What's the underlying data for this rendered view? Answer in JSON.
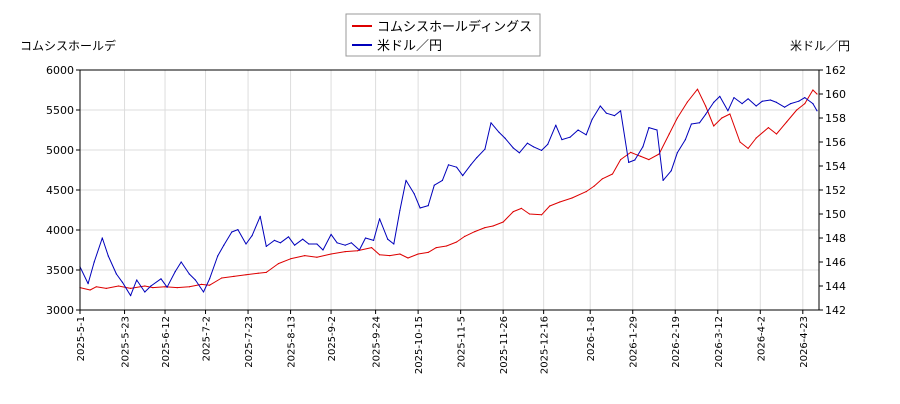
{
  "chart_data": {
    "type": "line",
    "left_axis_label": "コムシスホールデ",
    "right_axis_label": "米ドル／円",
    "legend": [
      "コムシスホールディングス",
      "米ドル／円"
    ],
    "left_ylim": [
      3000,
      6000
    ],
    "right_ylim": [
      142,
      162
    ],
    "left_yticks": [
      "3000",
      "3500",
      "4000",
      "4500",
      "5000",
      "5500",
      "6000"
    ],
    "right_yticks": [
      "142",
      "144",
      "146",
      "148",
      "150",
      "152",
      "154",
      "156",
      "158",
      "160",
      "162"
    ],
    "xlim": [
      "2025-05-01",
      "2026-05-01"
    ],
    "x_tick_labels": [
      "2025-5-1",
      "2025-5-23",
      "2025-6-12",
      "2025-7-2",
      "2025-7-23",
      "2025-8-13",
      "2025-9-2",
      "2025-9-24",
      "2025-10-15",
      "2025-11-5",
      "2025-11-26",
      "2025-12-16",
      "2026-1-8",
      "2026-1-29",
      "2026-2-19",
      "2026-3-12",
      "2026-4-2",
      "2026-4-23"
    ],
    "x_tick_dates": [
      "2025-05-01",
      "2025-05-23",
      "2025-06-12",
      "2025-07-02",
      "2025-07-23",
      "2025-08-13",
      "2025-09-02",
      "2025-09-24",
      "2025-10-15",
      "2025-11-05",
      "2025-11-26",
      "2025-12-16",
      "2026-01-08",
      "2026-01-29",
      "2026-02-19",
      "2026-03-12",
      "2026-04-02",
      "2026-04-23"
    ],
    "grid": true,
    "legend_position": "top-center",
    "series": [
      {
        "name": "コムシスホールディングス",
        "axis": "left",
        "color": "#dd0000",
        "points": [
          [
            "2025-05-01",
            3280
          ],
          [
            "2025-05-06",
            3250
          ],
          [
            "2025-05-09",
            3290
          ],
          [
            "2025-05-14",
            3270
          ],
          [
            "2025-05-20",
            3300
          ],
          [
            "2025-05-26",
            3270
          ],
          [
            "2025-06-02",
            3300
          ],
          [
            "2025-06-06",
            3280
          ],
          [
            "2025-06-12",
            3290
          ],
          [
            "2025-06-18",
            3280
          ],
          [
            "2025-06-24",
            3290
          ],
          [
            "2025-06-30",
            3320
          ],
          [
            "2025-07-04",
            3310
          ],
          [
            "2025-07-10",
            3400
          ],
          [
            "2025-07-16",
            3420
          ],
          [
            "2025-07-22",
            3440
          ],
          [
            "2025-07-28",
            3460
          ],
          [
            "2025-08-01",
            3470
          ],
          [
            "2025-08-07",
            3580
          ],
          [
            "2025-08-13",
            3640
          ],
          [
            "2025-08-20",
            3680
          ],
          [
            "2025-08-26",
            3660
          ],
          [
            "2025-09-02",
            3700
          ],
          [
            "2025-09-09",
            3730
          ],
          [
            "2025-09-15",
            3740
          ],
          [
            "2025-09-22",
            3780
          ],
          [
            "2025-09-26",
            3690
          ],
          [
            "2025-10-01",
            3680
          ],
          [
            "2025-10-06",
            3700
          ],
          [
            "2025-10-10",
            3650
          ],
          [
            "2025-10-15",
            3700
          ],
          [
            "2025-10-20",
            3720
          ],
          [
            "2025-10-24",
            3780
          ],
          [
            "2025-10-29",
            3800
          ],
          [
            "2025-11-03",
            3850
          ],
          [
            "2025-11-07",
            3920
          ],
          [
            "2025-11-12",
            3980
          ],
          [
            "2025-11-17",
            4030
          ],
          [
            "2025-11-21",
            4050
          ],
          [
            "2025-11-26",
            4100
          ],
          [
            "2025-12-01",
            4230
          ],
          [
            "2025-12-05",
            4270
          ],
          [
            "2025-12-09",
            4200
          ],
          [
            "2025-12-15",
            4190
          ],
          [
            "2025-12-19",
            4300
          ],
          [
            "2025-12-24",
            4350
          ],
          [
            "2025-12-30",
            4400
          ],
          [
            "2026-01-06",
            4480
          ],
          [
            "2026-01-10",
            4550
          ],
          [
            "2026-01-14",
            4640
          ],
          [
            "2026-01-19",
            4700
          ],
          [
            "2026-01-23",
            4880
          ],
          [
            "2026-01-28",
            4970
          ],
          [
            "2026-02-02",
            4920
          ],
          [
            "2026-02-06",
            4880
          ],
          [
            "2026-02-11",
            4950
          ],
          [
            "2026-02-16",
            5200
          ],
          [
            "2026-02-20",
            5400
          ],
          [
            "2026-02-25",
            5600
          ],
          [
            "2026-03-02",
            5760
          ],
          [
            "2026-03-06",
            5550
          ],
          [
            "2026-03-10",
            5300
          ],
          [
            "2026-03-14",
            5400
          ],
          [
            "2026-03-18",
            5450
          ],
          [
            "2026-03-23",
            5100
          ],
          [
            "2026-03-27",
            5020
          ],
          [
            "2026-03-31",
            5150
          ],
          [
            "2026-04-06",
            5280
          ],
          [
            "2026-04-10",
            5200
          ],
          [
            "2026-04-15",
            5350
          ],
          [
            "2026-04-20",
            5500
          ],
          [
            "2026-04-24",
            5580
          ],
          [
            "2026-04-28",
            5750
          ],
          [
            "2026-04-30",
            5700
          ]
        ]
      },
      {
        "name": "米ドル／円",
        "axis": "right",
        "color": "#0000bb",
        "points": [
          [
            "2025-05-01",
            145.6
          ],
          [
            "2025-05-05",
            144.2
          ],
          [
            "2025-05-08",
            146.0
          ],
          [
            "2025-05-12",
            148.0
          ],
          [
            "2025-05-15",
            146.5
          ],
          [
            "2025-05-19",
            145.0
          ],
          [
            "2025-05-22",
            144.3
          ],
          [
            "2025-05-26",
            143.2
          ],
          [
            "2025-05-29",
            144.5
          ],
          [
            "2025-06-02",
            143.5
          ],
          [
            "2025-06-05",
            144.0
          ],
          [
            "2025-06-10",
            144.6
          ],
          [
            "2025-06-13",
            143.9
          ],
          [
            "2025-06-17",
            145.2
          ],
          [
            "2025-06-20",
            146.0
          ],
          [
            "2025-06-24",
            145.0
          ],
          [
            "2025-06-27",
            144.5
          ],
          [
            "2025-07-01",
            143.5
          ],
          [
            "2025-07-04",
            144.6
          ],
          [
            "2025-07-08",
            146.5
          ],
          [
            "2025-07-11",
            147.4
          ],
          [
            "2025-07-15",
            148.5
          ],
          [
            "2025-07-18",
            148.7
          ],
          [
            "2025-07-22",
            147.5
          ],
          [
            "2025-07-25",
            148.2
          ],
          [
            "2025-07-29",
            149.8
          ],
          [
            "2025-08-01",
            147.3
          ],
          [
            "2025-08-05",
            147.8
          ],
          [
            "2025-08-08",
            147.6
          ],
          [
            "2025-08-12",
            148.1
          ],
          [
            "2025-08-15",
            147.4
          ],
          [
            "2025-08-19",
            147.9
          ],
          [
            "2025-08-22",
            147.5
          ],
          [
            "2025-08-26",
            147.5
          ],
          [
            "2025-08-29",
            147.0
          ],
          [
            "2025-09-02",
            148.3
          ],
          [
            "2025-09-05",
            147.6
          ],
          [
            "2025-09-09",
            147.4
          ],
          [
            "2025-09-12",
            147.6
          ],
          [
            "2025-09-16",
            147.0
          ],
          [
            "2025-09-19",
            148.0
          ],
          [
            "2025-09-23",
            147.8
          ],
          [
            "2025-09-26",
            149.6
          ],
          [
            "2025-09-30",
            147.9
          ],
          [
            "2025-10-03",
            147.5
          ],
          [
            "2025-10-06",
            150.3
          ],
          [
            "2025-10-09",
            152.8
          ],
          [
            "2025-10-13",
            151.7
          ],
          [
            "2025-10-16",
            150.5
          ],
          [
            "2025-10-20",
            150.7
          ],
          [
            "2025-10-23",
            152.4
          ],
          [
            "2025-10-27",
            152.8
          ],
          [
            "2025-10-30",
            154.1
          ],
          [
            "2025-11-03",
            153.9
          ],
          [
            "2025-11-06",
            153.2
          ],
          [
            "2025-11-10",
            154.1
          ],
          [
            "2025-11-13",
            154.7
          ],
          [
            "2025-11-17",
            155.4
          ],
          [
            "2025-11-20",
            157.6
          ],
          [
            "2025-11-24",
            156.8
          ],
          [
            "2025-11-27",
            156.3
          ],
          [
            "2025-12-01",
            155.5
          ],
          [
            "2025-12-04",
            155.1
          ],
          [
            "2025-12-08",
            155.9
          ],
          [
            "2025-12-11",
            155.6
          ],
          [
            "2025-12-15",
            155.3
          ],
          [
            "2025-12-18",
            155.8
          ],
          [
            "2025-12-22",
            157.4
          ],
          [
            "2025-12-25",
            156.2
          ],
          [
            "2025-12-29",
            156.4
          ],
          [
            "2026-01-02",
            157.0
          ],
          [
            "2026-01-06",
            156.6
          ],
          [
            "2026-01-09",
            157.9
          ],
          [
            "2026-01-13",
            159.0
          ],
          [
            "2026-01-16",
            158.4
          ],
          [
            "2026-01-20",
            158.2
          ],
          [
            "2026-01-23",
            158.6
          ],
          [
            "2026-01-27",
            154.3
          ],
          [
            "2026-01-30",
            154.5
          ],
          [
            "2026-02-03",
            155.6
          ],
          [
            "2026-02-06",
            157.2
          ],
          [
            "2026-02-10",
            157.0
          ],
          [
            "2026-02-13",
            152.8
          ],
          [
            "2026-02-17",
            153.6
          ],
          [
            "2026-02-20",
            155.1
          ],
          [
            "2026-02-24",
            156.2
          ],
          [
            "2026-02-27",
            157.5
          ],
          [
            "2026-03-03",
            157.6
          ],
          [
            "2026-03-06",
            158.3
          ],
          [
            "2026-03-10",
            159.3
          ],
          [
            "2026-03-13",
            159.8
          ],
          [
            "2026-03-17",
            158.6
          ],
          [
            "2026-03-20",
            159.7
          ],
          [
            "2026-03-24",
            159.2
          ],
          [
            "2026-03-27",
            159.6
          ],
          [
            "2026-03-31",
            159.0
          ],
          [
            "2026-04-03",
            159.4
          ],
          [
            "2026-04-07",
            159.5
          ],
          [
            "2026-04-10",
            159.3
          ],
          [
            "2026-04-14",
            158.9
          ],
          [
            "2026-04-17",
            159.2
          ],
          [
            "2026-04-21",
            159.4
          ],
          [
            "2026-04-24",
            159.7
          ],
          [
            "2026-04-28",
            159.2
          ],
          [
            "2026-04-30",
            158.6
          ]
        ]
      }
    ]
  }
}
